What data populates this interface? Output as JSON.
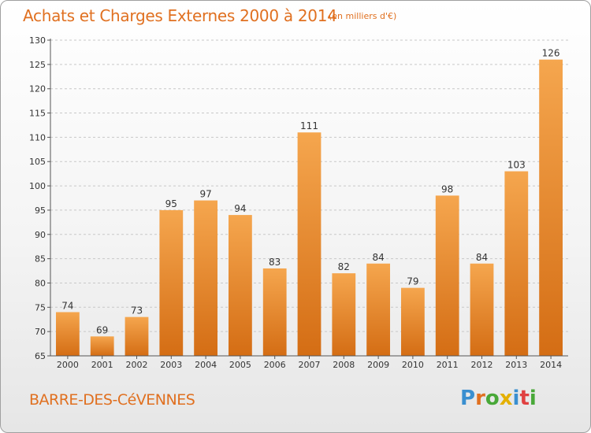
{
  "header": {
    "title": "Achats et Charges Externes 2000 à 2014",
    "subtitle": "(en milliers d'€)"
  },
  "footer": {
    "commune": "BARRE-DES-CéVENNES",
    "logo": [
      "P",
      "r",
      "o",
      "x",
      "i",
      "t",
      "i"
    ],
    "logo_colors": [
      "#3a8fd0",
      "#e07020",
      "#48a838",
      "#e4b000",
      "#3a8fd0",
      "#e04040",
      "#48a838"
    ]
  },
  "colors": {
    "bar_light": "#f5a64e",
    "bar_dark": "#d46d14",
    "grid": "#c8c8c8",
    "axis": "#555555",
    "text": "#333333"
  },
  "chart_data": {
    "type": "bar",
    "title": "Achats et Charges Externes 2000 à 2014",
    "subtitle": "(en milliers d'€)",
    "categories": [
      "2000",
      "2001",
      "2002",
      "2003",
      "2004",
      "2005",
      "2006",
      "2007",
      "2008",
      "2009",
      "2010",
      "2011",
      "2012",
      "2013",
      "2014"
    ],
    "values": [
      74,
      69,
      73,
      95,
      97,
      94,
      83,
      111,
      82,
      84,
      79,
      98,
      84,
      103,
      126
    ],
    "ylim": [
      65,
      130
    ],
    "yticks": [
      65,
      70,
      75,
      80,
      85,
      90,
      95,
      100,
      105,
      110,
      115,
      120,
      125,
      130
    ],
    "grid": "horizontal dashed",
    "legend": "none"
  }
}
